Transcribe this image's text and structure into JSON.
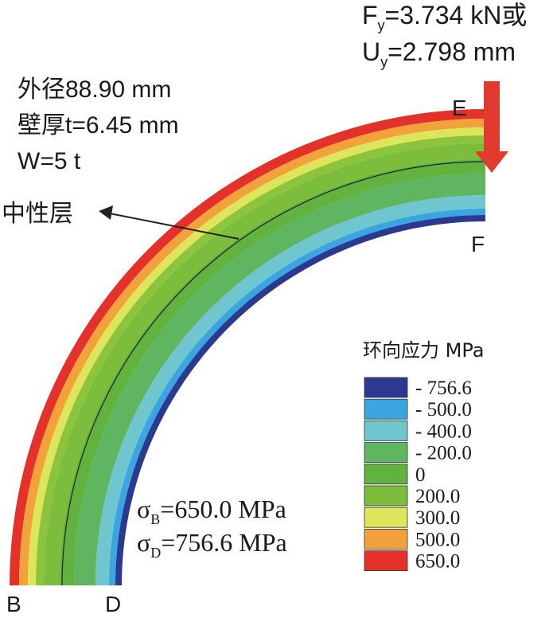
{
  "load": {
    "force_sym": "F",
    "force_sub": "y",
    "force_rest": "=3.734 kN或",
    "disp_sym": "U",
    "disp_sub": "y",
    "disp_rest": "=2.798 mm"
  },
  "specs": {
    "outer_diameter": "外径88.90 mm",
    "wall_thickness": "壁厚t=6.45 mm",
    "width": "W=5 t"
  },
  "neutral_layer_label": "中性层",
  "points": {
    "B": "B",
    "D": "D",
    "E": "E",
    "F": "F"
  },
  "stress_results": {
    "b_sym": "σ",
    "b_sub": "B",
    "b_rest": "=650.0 MPa",
    "d_sym": "σ",
    "d_sub": "D",
    "d_rest": "=756.6 MPa"
  },
  "legend": {
    "title": "环向应力 MPa",
    "items": [
      {
        "label": "- 756.6",
        "color": "#2b3990"
      },
      {
        "label": "- 500.0",
        "color": "#3aa6e0"
      },
      {
        "label": "- 400.0",
        "color": "#6fc6cf"
      },
      {
        "label": "- 200.0",
        "color": "#5fb560"
      },
      {
        "label": "0",
        "color": "#62b23f"
      },
      {
        "label": "200.0",
        "color": "#7dbd3c"
      },
      {
        "label": "300.0",
        "color": "#dde65a"
      },
      {
        "label": "500.0",
        "color": "#f2a23a"
      },
      {
        "label": "650.0",
        "color": "#e4322b"
      }
    ]
  },
  "colors": {
    "arrow": "#e23a2f",
    "outline": "#222222"
  }
}
